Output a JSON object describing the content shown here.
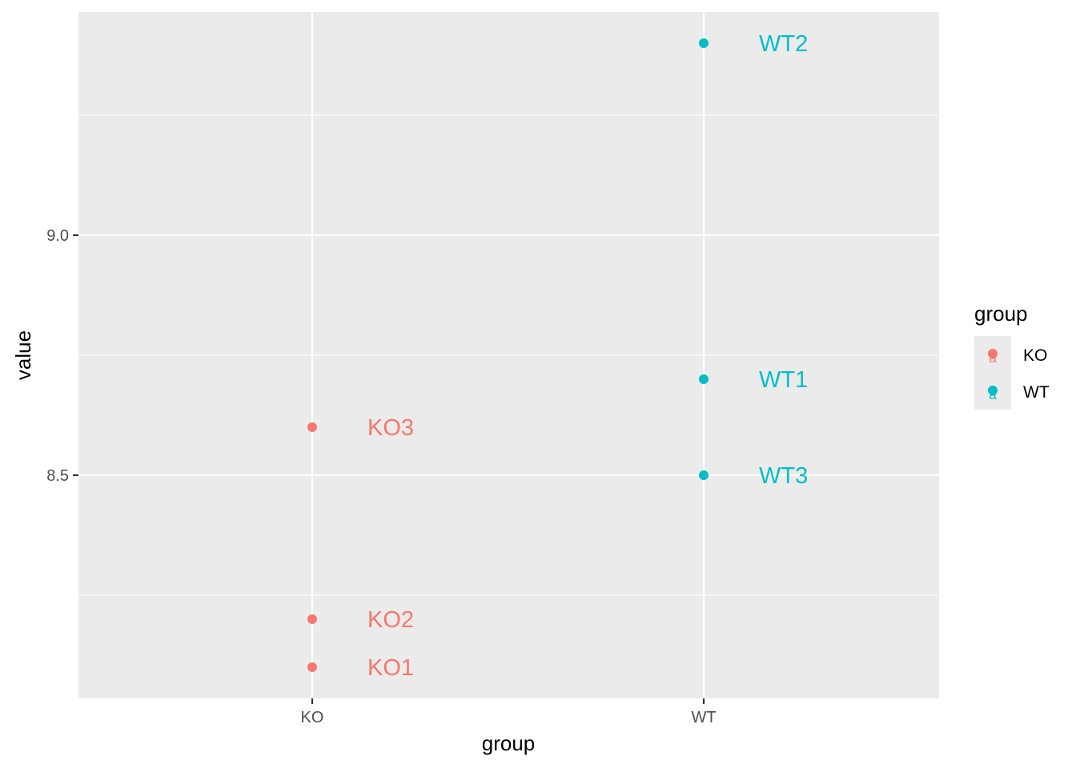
{
  "chart_data": {
    "type": "scatter",
    "title": "",
    "xlabel": "group",
    "ylabel": "value",
    "categories": [
      "KO",
      "WT"
    ],
    "ylim": [
      8.035,
      9.465
    ],
    "y_ticks": [
      8.5,
      9.0
    ],
    "y_tick_labels": [
      "8.5",
      "9.0"
    ],
    "grid": true,
    "points": [
      {
        "group": "KO",
        "label": "KO1",
        "y": 8.1
      },
      {
        "group": "KO",
        "label": "KO2",
        "y": 8.2
      },
      {
        "group": "KO",
        "label": "KO3",
        "y": 8.6
      },
      {
        "group": "WT",
        "label": "WT1",
        "y": 8.7
      },
      {
        "group": "WT",
        "label": "WT2",
        "y": 9.4
      },
      {
        "group": "WT",
        "label": "WT3",
        "y": 8.5
      }
    ],
    "colors": {
      "KO": "#F8766D",
      "WT": "#00BFC4"
    },
    "legend": {
      "title": "group",
      "placement": "right",
      "entries": [
        "KO",
        "WT"
      ],
      "key_glyph": "a"
    },
    "panel_background": "#EBEBEB",
    "grid_color": "#FFFFFF"
  }
}
